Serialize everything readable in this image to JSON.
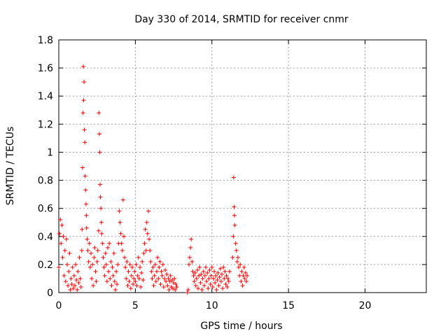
{
  "chart_data": {
    "type": "scatter",
    "title": "Day 330 of 2014, SRMTID for receiver cnmr",
    "xlabel": "GPS time / hours",
    "ylabel": "SRMTID / TECUs",
    "xlim": [
      0,
      24
    ],
    "ylim": [
      0,
      1.8
    ],
    "x_ticks": [
      0,
      5,
      10,
      15,
      20
    ],
    "x_tick_labels": [
      "0",
      "5",
      "10",
      "15",
      "20"
    ],
    "y_ticks": [
      0,
      0.2,
      0.4,
      0.6,
      0.8,
      1,
      1.2,
      1.4,
      1.6,
      1.8
    ],
    "y_tick_labels": [
      "0",
      "0.2",
      "0.4",
      "0.6",
      "0.8",
      "1",
      "1.2",
      "1.4",
      "1.6",
      "1.8"
    ],
    "grid": true,
    "marker": "+",
    "marker_color": "#ff0000",
    "series": [
      {
        "name": "SRMTID",
        "points": [
          [
            0.0,
            0.18
          ],
          [
            0.05,
            0.42
          ],
          [
            0.1,
            0.52
          ],
          [
            0.15,
            0.35
          ],
          [
            0.2,
            0.48
          ],
          [
            0.25,
            0.25
          ],
          [
            0.3,
            0.4
          ],
          [
            0.35,
            0.12
          ],
          [
            0.4,
            0.3
          ],
          [
            0.45,
            0.08
          ],
          [
            0.5,
            0.38
          ],
          [
            0.55,
            0.2
          ],
          [
            0.6,
            0.05
          ],
          [
            0.65,
            0.15
          ],
          [
            0.7,
            0.28
          ],
          [
            0.75,
            0.02
          ],
          [
            0.8,
            0.1
          ],
          [
            0.85,
            0.06
          ],
          [
            0.9,
            0.18
          ],
          [
            0.95,
            0.03
          ],
          [
            1.0,
            0.12
          ],
          [
            1.05,
            0.05
          ],
          [
            1.1,
            0.2
          ],
          [
            1.15,
            0.09
          ],
          [
            1.2,
            0.02
          ],
          [
            1.25,
            0.15
          ],
          [
            1.3,
            0.07
          ],
          [
            1.35,
            0.25
          ],
          [
            1.4,
            0.1
          ],
          [
            1.45,
            0.04
          ],
          [
            1.5,
            0.3
          ],
          [
            1.52,
            0.45
          ],
          [
            1.55,
            0.89
          ],
          [
            1.58,
            1.28
          ],
          [
            1.6,
            1.61
          ],
          [
            1.62,
            1.37
          ],
          [
            1.65,
            1.5
          ],
          [
            1.67,
            1.16
          ],
          [
            1.7,
            1.07
          ],
          [
            1.72,
            0.83
          ],
          [
            1.75,
            0.73
          ],
          [
            1.78,
            0.63
          ],
          [
            1.8,
            0.55
          ],
          [
            1.82,
            0.46
          ],
          [
            1.85,
            0.38
          ],
          [
            1.9,
            0.3
          ],
          [
            1.95,
            0.22
          ],
          [
            2.0,
            0.35
          ],
          [
            2.05,
            0.18
          ],
          [
            2.1,
            0.28
          ],
          [
            2.15,
            0.1
          ],
          [
            2.2,
            0.2
          ],
          [
            2.25,
            0.05
          ],
          [
            2.3,
            0.25
          ],
          [
            2.35,
            0.32
          ],
          [
            2.4,
            0.15
          ],
          [
            2.45,
            0.08
          ],
          [
            2.5,
            0.22
          ],
          [
            2.55,
            0.3
          ],
          [
            2.6,
            0.44
          ],
          [
            2.62,
            1.28
          ],
          [
            2.65,
            1.13
          ],
          [
            2.67,
            1.0
          ],
          [
            2.7,
            0.77
          ],
          [
            2.72,
            0.68
          ],
          [
            2.75,
            0.6
          ],
          [
            2.78,
            0.5
          ],
          [
            2.8,
            0.42
          ],
          [
            2.85,
            0.35
          ],
          [
            2.9,
            0.25
          ],
          [
            2.95,
            0.18
          ],
          [
            3.0,
            0.12
          ],
          [
            3.05,
            0.28
          ],
          [
            3.1,
            0.2
          ],
          [
            3.15,
            0.08
          ],
          [
            3.2,
            0.32
          ],
          [
            3.25,
            0.15
          ],
          [
            3.3,
            0.35
          ],
          [
            3.35,
            0.1
          ],
          [
            3.4,
            0.22
          ],
          [
            3.45,
            0.05
          ],
          [
            3.5,
            0.18
          ],
          [
            3.55,
            0.12
          ],
          [
            3.6,
            0.28
          ],
          [
            3.65,
            0.08
          ],
          [
            3.7,
            0.02
          ],
          [
            3.75,
            0.15
          ],
          [
            3.8,
            0.06
          ],
          [
            3.85,
            0.2
          ],
          [
            3.9,
            0.35
          ],
          [
            3.95,
            0.58
          ],
          [
            4.0,
            0.5
          ],
          [
            4.05,
            0.42
          ],
          [
            4.1,
            0.35
          ],
          [
            4.15,
            0.3
          ],
          [
            4.2,
            0.66
          ],
          [
            4.25,
            0.4
          ],
          [
            4.3,
            0.25
          ],
          [
            4.35,
            0.18
          ],
          [
            4.4,
            0.1
          ],
          [
            4.45,
            0.22
          ],
          [
            4.5,
            0.05
          ],
          [
            4.55,
            0.15
          ],
          [
            4.6,
            0.08
          ],
          [
            4.65,
            0.2
          ],
          [
            4.7,
            0.03
          ],
          [
            4.75,
            0.12
          ],
          [
            4.8,
            0.18
          ],
          [
            4.85,
            0.06
          ],
          [
            4.9,
            0.1
          ],
          [
            4.95,
            0.15
          ],
          [
            5.0,
            0.08
          ],
          [
            5.05,
            0.2
          ],
          [
            5.1,
            0.05
          ],
          [
            5.15,
            0.12
          ],
          [
            5.2,
            0.25
          ],
          [
            5.25,
            0.1
          ],
          [
            5.3,
            0.18
          ],
          [
            5.35,
            0.04
          ],
          [
            5.4,
            0.14
          ],
          [
            5.45,
            0.22
          ],
          [
            5.5,
            0.09
          ],
          [
            5.55,
            0.28
          ],
          [
            5.6,
            0.35
          ],
          [
            5.65,
            0.45
          ],
          [
            5.7,
            0.3
          ],
          [
            5.75,
            0.5
          ],
          [
            5.8,
            0.42
          ],
          [
            5.85,
            0.58
          ],
          [
            5.9,
            0.38
          ],
          [
            5.95,
            0.3
          ],
          [
            6.0,
            0.22
          ],
          [
            6.05,
            0.15
          ],
          [
            6.1,
            0.1
          ],
          [
            6.15,
            0.18
          ],
          [
            6.2,
            0.05
          ],
          [
            6.25,
            0.12
          ],
          [
            6.3,
            0.2
          ],
          [
            6.35,
            0.08
          ],
          [
            6.4,
            0.15
          ],
          [
            6.45,
            0.25
          ],
          [
            6.5,
            0.1
          ],
          [
            6.55,
            0.18
          ],
          [
            6.6,
            0.22
          ],
          [
            6.65,
            0.06
          ],
          [
            6.7,
            0.15
          ],
          [
            6.75,
            0.12
          ],
          [
            6.8,
            0.2
          ],
          [
            6.85,
            0.04
          ],
          [
            6.9,
            0.1
          ],
          [
            6.95,
            0.16
          ],
          [
            7.0,
            0.08
          ],
          [
            7.05,
            0.13
          ],
          [
            7.1,
            0.05
          ],
          [
            7.15,
            0.1
          ],
          [
            7.2,
            0.02
          ],
          [
            7.25,
            0.08
          ],
          [
            7.3,
            0.12
          ],
          [
            7.35,
            0.04
          ],
          [
            7.4,
            0.09
          ],
          [
            7.45,
            0.03
          ],
          [
            7.5,
            0.07
          ],
          [
            7.55,
            0.1
          ],
          [
            7.6,
            0.02
          ],
          [
            7.65,
            0.06
          ],
          [
            7.7,
            0.04
          ],
          [
            8.4,
            0.0
          ],
          [
            8.45,
            0.02
          ],
          [
            8.5,
            0.2
          ],
          [
            8.55,
            0.25
          ],
          [
            8.6,
            0.32
          ],
          [
            8.65,
            0.38
          ],
          [
            8.7,
            0.22
          ],
          [
            8.75,
            0.15
          ],
          [
            8.8,
            0.12
          ],
          [
            8.85,
            0.08
          ],
          [
            8.9,
            0.14
          ],
          [
            8.95,
            0.05
          ],
          [
            9.0,
            0.1
          ],
          [
            9.05,
            0.16
          ],
          [
            9.1,
            0.03
          ],
          [
            9.15,
            0.12
          ],
          [
            9.2,
            0.18
          ],
          [
            9.25,
            0.07
          ],
          [
            9.3,
            0.13
          ],
          [
            9.35,
            0.02
          ],
          [
            9.4,
            0.1
          ],
          [
            9.45,
            0.15
          ],
          [
            9.5,
            0.05
          ],
          [
            9.55,
            0.12
          ],
          [
            9.6,
            0.18
          ],
          [
            9.65,
            0.08
          ],
          [
            9.7,
            0.14
          ],
          [
            9.75,
            0.03
          ],
          [
            9.8,
            0.1
          ],
          [
            9.85,
            0.16
          ],
          [
            9.9,
            0.06
          ],
          [
            9.95,
            0.12
          ],
          [
            10.0,
            0.18
          ],
          [
            10.05,
            0.04
          ],
          [
            10.1,
            0.1
          ],
          [
            10.15,
            0.15
          ],
          [
            10.2,
            0.07
          ],
          [
            10.25,
            0.12
          ],
          [
            10.3,
            0.02
          ],
          [
            10.35,
            0.09
          ],
          [
            10.4,
            0.14
          ],
          [
            10.45,
            0.05
          ],
          [
            10.5,
            0.11
          ],
          [
            10.55,
            0.17
          ],
          [
            10.6,
            0.08
          ],
          [
            10.65,
            0.13
          ],
          [
            10.7,
            0.03
          ],
          [
            10.75,
            0.18
          ],
          [
            10.8,
            0.1
          ],
          [
            10.85,
            0.15
          ],
          [
            10.9,
            0.06
          ],
          [
            10.95,
            0.12
          ],
          [
            11.0,
            0.04
          ],
          [
            11.05,
            0.1
          ],
          [
            11.1,
            0.08
          ],
          [
            11.15,
            0.15
          ],
          [
            11.35,
            0.25
          ],
          [
            11.4,
            0.4
          ],
          [
            11.42,
            0.82
          ],
          [
            11.45,
            0.61
          ],
          [
            11.47,
            0.55
          ],
          [
            11.5,
            0.48
          ],
          [
            11.55,
            0.35
          ],
          [
            11.6,
            0.3
          ],
          [
            11.65,
            0.22
          ],
          [
            11.7,
            0.25
          ],
          [
            11.75,
            0.18
          ],
          [
            11.8,
            0.12
          ],
          [
            11.85,
            0.2
          ],
          [
            11.9,
            0.08
          ],
          [
            11.95,
            0.15
          ],
          [
            12.0,
            0.05
          ],
          [
            12.05,
            0.12
          ],
          [
            12.1,
            0.18
          ],
          [
            12.15,
            0.1
          ],
          [
            12.2,
            0.14
          ],
          [
            12.25,
            0.08
          ],
          [
            12.3,
            0.12
          ]
        ]
      }
    ]
  }
}
